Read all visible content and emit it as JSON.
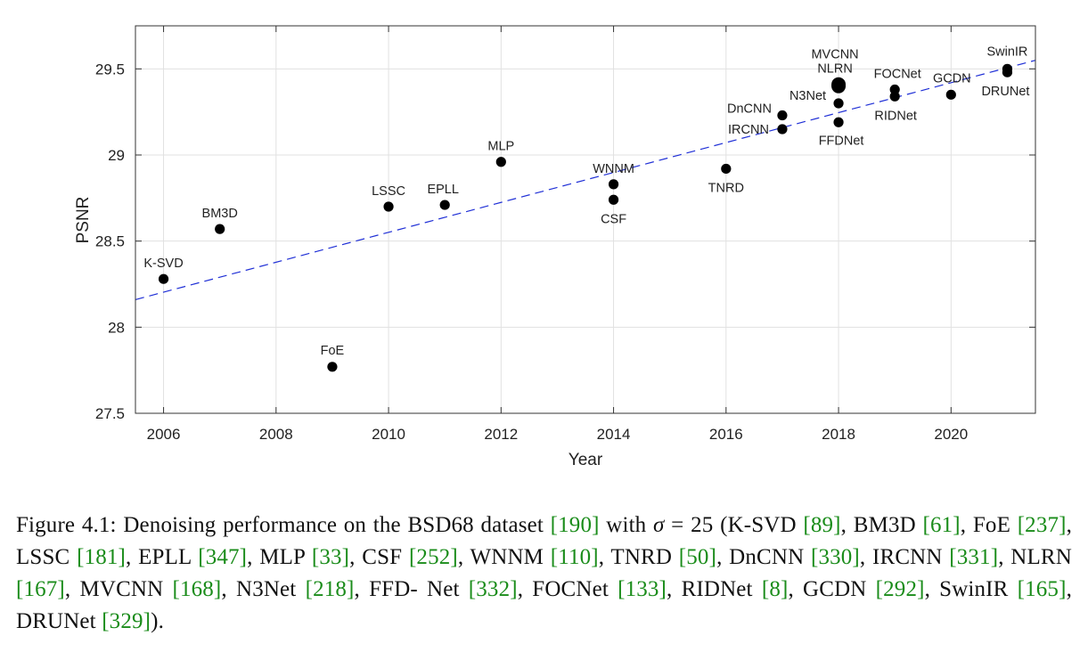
{
  "chart_data": {
    "type": "scatter",
    "xlabel": "Year",
    "ylabel": "PSNR",
    "xlim": [
      2005.5,
      2021.5
    ],
    "ylim": [
      27.5,
      29.75
    ],
    "xticks": [
      2006,
      2008,
      2010,
      2012,
      2014,
      2016,
      2018,
      2020
    ],
    "xtick_labels": [
      "2006",
      "2008",
      "2010",
      "2012",
      "2014",
      "2016",
      "2018",
      "2020"
    ],
    "yticks": [
      27.5,
      28,
      28.5,
      29,
      29.5
    ],
    "ytick_labels": [
      "27.5",
      "28",
      "28.5",
      "29",
      "29.5"
    ],
    "grid": true,
    "marker_color": "#000000",
    "trend_color": "#1f2fd6",
    "trend_line": {
      "x": [
        2005.5,
        2021.5
      ],
      "y": [
        28.16,
        29.55
      ]
    },
    "points": [
      {
        "name": "K-SVD",
        "x": 2006,
        "y": 28.28
      },
      {
        "name": "BM3D",
        "x": 2007,
        "y": 28.57
      },
      {
        "name": "FoE",
        "x": 2009,
        "y": 27.77
      },
      {
        "name": "LSSC",
        "x": 2010,
        "y": 28.7
      },
      {
        "name": "EPLL",
        "x": 2011,
        "y": 28.71
      },
      {
        "name": "MLP",
        "x": 2012,
        "y": 28.96
      },
      {
        "name": "WNNM",
        "x": 2014,
        "y": 28.83
      },
      {
        "name": "CSF",
        "x": 2014,
        "y": 28.74
      },
      {
        "name": "TNRD",
        "x": 2016,
        "y": 28.92
      },
      {
        "name": "DnCNN",
        "x": 2017,
        "y": 29.23
      },
      {
        "name": "IRCNN",
        "x": 2017,
        "y": 29.15
      },
      {
        "name": "NLRN",
        "x": 2018,
        "y": 29.41
      },
      {
        "name": "MVCNN",
        "x": 2018,
        "y": 29.4
      },
      {
        "name": "N3Net",
        "x": 2018,
        "y": 29.3
      },
      {
        "name": "FFDNet",
        "x": 2018,
        "y": 29.19
      },
      {
        "name": "FOCNet",
        "x": 2019,
        "y": 29.38
      },
      {
        "name": "RIDNet",
        "x": 2019,
        "y": 29.34
      },
      {
        "name": "GCDN",
        "x": 2020,
        "y": 29.35
      },
      {
        "name": "SwinIR",
        "x": 2021,
        "y": 29.5
      },
      {
        "name": "DRUNet",
        "x": 2021,
        "y": 29.48
      }
    ]
  },
  "caption": {
    "segments": [
      {
        "t": "Figure 4.1: Denoising performance on the BSD68 dataset "
      },
      {
        "t": "[190]",
        "ref": true
      },
      {
        "t": " with "
      },
      {
        "t": "σ",
        "sym": true
      },
      {
        "t": " = 25 (K-SVD "
      },
      {
        "t": "[89]",
        "ref": true
      },
      {
        "t": ", BM3D "
      },
      {
        "t": "[61]",
        "ref": true
      },
      {
        "t": ", FoE "
      },
      {
        "t": "[237]",
        "ref": true
      },
      {
        "t": ", LSSC "
      },
      {
        "t": "[181]",
        "ref": true
      },
      {
        "t": ", EPLL "
      },
      {
        "t": "[347]",
        "ref": true
      },
      {
        "t": ", MLP "
      },
      {
        "t": "[33]",
        "ref": true
      },
      {
        "t": ", CSF "
      },
      {
        "t": "[252]",
        "ref": true
      },
      {
        "t": ", WNNM "
      },
      {
        "t": "[110]",
        "ref": true
      },
      {
        "t": ", TNRD "
      },
      {
        "t": "[50]",
        "ref": true
      },
      {
        "t": ", DnCNN "
      },
      {
        "t": "[330]",
        "ref": true
      },
      {
        "t": ", IRCNN "
      },
      {
        "t": "[331]",
        "ref": true
      },
      {
        "t": ", NLRN "
      },
      {
        "t": "[167]",
        "ref": true
      },
      {
        "t": ", MVCNN "
      },
      {
        "t": "[168]",
        "ref": true
      },
      {
        "t": ", N3Net "
      },
      {
        "t": "[218]",
        "ref": true
      },
      {
        "t": ", FFD- Net "
      },
      {
        "t": "[332]",
        "ref": true
      },
      {
        "t": ", FOCNet "
      },
      {
        "t": "[133]",
        "ref": true
      },
      {
        "t": ", RIDNet "
      },
      {
        "t": "[8]",
        "ref": true
      },
      {
        "t": ", GCDN "
      },
      {
        "t": "[292]",
        "ref": true
      },
      {
        "t": ", SwinIR "
      },
      {
        "t": "[165]",
        "ref": true
      },
      {
        "t": ", DRUNet "
      },
      {
        "t": "[329]",
        "ref": true
      },
      {
        "t": ")."
      }
    ]
  }
}
